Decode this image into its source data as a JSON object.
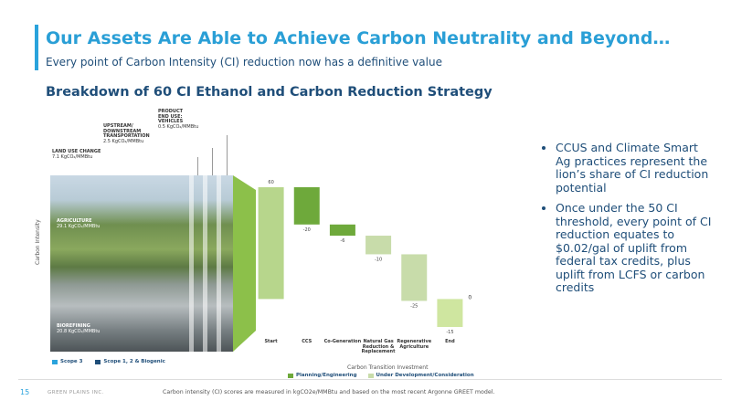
{
  "header": {
    "title": "Our Assets Are Able to Achieve Carbon Neutrality and Beyond…",
    "subtitle": "Every point of Carbon Intensity (CI) reduction now has a definitive value"
  },
  "section_title": "Breakdown of 60 CI Ethanol and Carbon Reduction Strategy",
  "image_panel": {
    "axis_label": "Carbon Intensity",
    "labels": [
      {
        "name": "PRODUCT END USE: VEHICLES",
        "value": "0.5 KgCO₂/MMBtu"
      },
      {
        "name": "UPSTREAM/ DOWNSTREAM TRANSPORTATION",
        "value": "2.5 KgCO₂/MMBtu"
      },
      {
        "name": "LAND USE CHANGE",
        "value": "7.1 KgCO₂/MMBtu"
      },
      {
        "name": "AGRICULTURE",
        "value": "29.1 KgCO₂/MMBtu"
      },
      {
        "name": "BIOREFINING",
        "value": "20.8 KgCO₂/MMBtu"
      }
    ],
    "legend": [
      {
        "name": "Scope 3",
        "color": "#2aa3dc"
      },
      {
        "name": "Scope 1, 2 & Biogenic",
        "color": "#1f4e79"
      }
    ]
  },
  "chart_data": {
    "type": "waterfall",
    "categories": [
      "Start",
      "CCS",
      "Co-Generation",
      "Natural Gas Reduction & Replacement",
      "Regenerative Agriculture",
      "End"
    ],
    "values": [
      60,
      -20,
      -6,
      -10,
      -25,
      -15
    ],
    "colors": [
      "#b7d68c",
      "#6ea93b",
      "#6ea93b",
      "#c8dcaa",
      "#c8dcaa",
      "#cfe6a0"
    ],
    "x_label": "Carbon Transition Investment",
    "annotations": [
      "0"
    ],
    "legend": [
      {
        "name": "Planning/Engineering",
        "color": "#6ea93b"
      },
      {
        "name": "Under Development/Consideration",
        "color": "#c8dcaa"
      }
    ]
  },
  "bullets": [
    "CCUS and Climate Smart Ag practices represent the lion’s share of CI reduction potential",
    "Once under the 50 CI threshold, every point of CI reduction equates to $0.02/gal of uplift from federal tax credits, plus uplift from LCFS or carbon credits"
  ],
  "footer": {
    "page": "15",
    "company": "GREEN PLAINS INC.",
    "note": "Carbon intensity (CI) scores are measured in kgCO2e/MMBtu and based on the most recent Argonne GREET model."
  }
}
